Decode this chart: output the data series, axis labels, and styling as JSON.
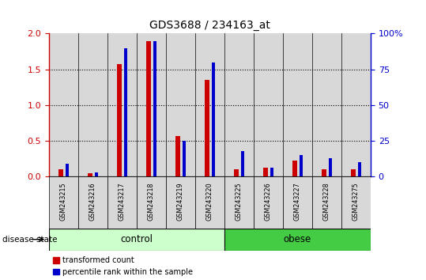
{
  "title": "GDS3688 / 234163_at",
  "samples": [
    "GSM243215",
    "GSM243216",
    "GSM243217",
    "GSM243218",
    "GSM243219",
    "GSM243220",
    "GSM243225",
    "GSM243226",
    "GSM243227",
    "GSM243228",
    "GSM243275"
  ],
  "transformed_count": [
    0.1,
    0.04,
    1.57,
    1.9,
    0.57,
    1.35,
    0.1,
    0.12,
    0.22,
    0.1,
    0.1
  ],
  "percentile_rank": [
    9,
    3,
    90,
    95,
    25,
    80,
    18,
    6,
    15,
    13,
    10
  ],
  "red_color": "#cc0000",
  "blue_color": "#0000cc",
  "left_ylim": [
    0,
    2
  ],
  "left_yticks": [
    0,
    0.5,
    1.0,
    1.5,
    2.0
  ],
  "right_ylim": [
    0,
    100
  ],
  "right_yticks": [
    0,
    25,
    50,
    75,
    100
  ],
  "right_yticklabels": [
    "0",
    "25",
    "50",
    "75",
    "100%"
  ],
  "n_control": 6,
  "control_color": "#ccffcc",
  "obese_color": "#44cc44",
  "bar_bg_color": "#d8d8d8",
  "legend_red": "transformed count",
  "legend_blue": "percentile rank within the sample",
  "disease_state_label": "disease state",
  "control_label": "control",
  "obese_label": "obese"
}
